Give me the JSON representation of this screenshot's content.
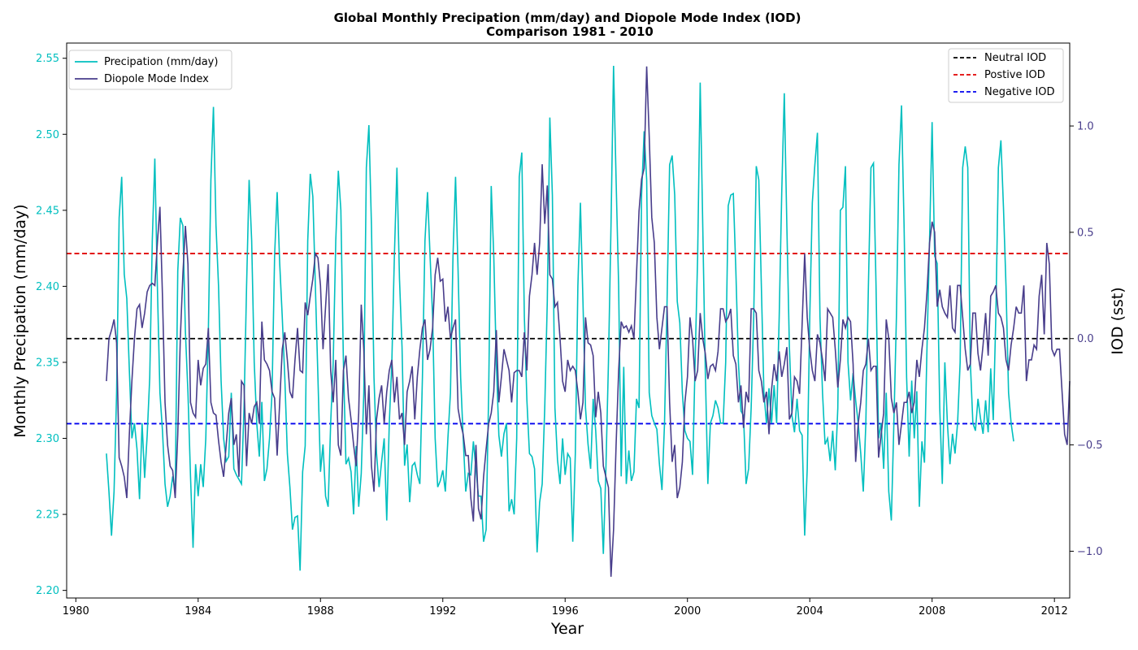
{
  "colors": {
    "precip": "#00bfbf",
    "iod": "#483d8b",
    "neutral": "#000000",
    "positive": "#e00000",
    "negative": "#0000ee",
    "left_tick_text": "#00bfbf",
    "right_tick_text": "#483d8b"
  },
  "chart_data": {
    "type": "line",
    "title": "Global Monthly Precipation (mm/day) and Diopole Mode Index (IOD)",
    "subtitle": "Comparison 1981 - 2010",
    "xlabel": "Year",
    "ylabel_left": "Monthly Precipation (mm/day)",
    "ylabel_right": "IOD (sst)",
    "xlim": [
      1979.7,
      2012.5
    ],
    "ylim_left": [
      2.195,
      2.56
    ],
    "ylim_right": [
      -1.22,
      1.39
    ],
    "x_ticks": [
      1980,
      1984,
      1988,
      1992,
      1996,
      2000,
      2004,
      2008,
      2012
    ],
    "x_tick_labels": [
      "1980",
      "1984",
      "1988",
      "1992",
      "1996",
      "2000",
      "2004",
      "2008",
      "2012"
    ],
    "left_ticks": [
      2.2,
      2.25,
      2.3,
      2.35,
      2.4,
      2.45,
      2.5,
      2.55
    ],
    "left_tick_labels": [
      "2.20",
      "2.25",
      "2.30",
      "2.35",
      "2.40",
      "2.45",
      "2.50",
      "2.55"
    ],
    "right_ticks": [
      -1.0,
      -0.5,
      0.0,
      0.5,
      1.0
    ],
    "right_tick_labels": [
      "−1.0",
      "−0.5",
      "0.0",
      "0.5",
      "1.0"
    ],
    "x_start": 1981.0,
    "x_step": 0.0833333,
    "grid": false,
    "legend_left_position": "upper-left",
    "legend_right_position": "upper-right",
    "series": [
      {
        "name": "Precipation (mm/day)",
        "axis": "left",
        "values": [
          2.29,
          2.265,
          2.236,
          2.265,
          2.33,
          2.445,
          2.472,
          2.408,
          2.392,
          2.345,
          2.3,
          2.31,
          2.293,
          2.26,
          2.31,
          2.274,
          2.302,
          2.34,
          2.43,
          2.484,
          2.4,
          2.33,
          2.305,
          2.27,
          2.255,
          2.262,
          2.275,
          2.265,
          2.41,
          2.445,
          2.44,
          2.37,
          2.33,
          2.275,
          2.228,
          2.283,
          2.262,
          2.283,
          2.268,
          2.3,
          2.37,
          2.47,
          2.518,
          2.44,
          2.4,
          2.338,
          2.3,
          2.285,
          2.288,
          2.33,
          2.28,
          2.276,
          2.273,
          2.27,
          2.32,
          2.4,
          2.47,
          2.43,
          2.35,
          2.31,
          2.288,
          2.324,
          2.272,
          2.28,
          2.3,
          2.33,
          2.42,
          2.462,
          2.415,
          2.38,
          2.34,
          2.29,
          2.268,
          2.24,
          2.248,
          2.249,
          2.213,
          2.278,
          2.295,
          2.43,
          2.474,
          2.459,
          2.4,
          2.34,
          2.278,
          2.296,
          2.262,
          2.255,
          2.31,
          2.35,
          2.43,
          2.476,
          2.45,
          2.35,
          2.283,
          2.287,
          2.278,
          2.25,
          2.295,
          2.255,
          2.277,
          2.33,
          2.478,
          2.506,
          2.44,
          2.34,
          2.29,
          2.268,
          2.285,
          2.3,
          2.246,
          2.31,
          2.35,
          2.42,
          2.478,
          2.405,
          2.36,
          2.282,
          2.296,
          2.258,
          2.282,
          2.284,
          2.276,
          2.27,
          2.34,
          2.43,
          2.462,
          2.42,
          2.38,
          2.3,
          2.268,
          2.272,
          2.279,
          2.265,
          2.3,
          2.33,
          2.42,
          2.472,
          2.41,
          2.34,
          2.3,
          2.265,
          2.277,
          2.276,
          2.298,
          2.28,
          2.262,
          2.262,
          2.232,
          2.24,
          2.33,
          2.466,
          2.42,
          2.35,
          2.302,
          2.288,
          2.303,
          2.31,
          2.252,
          2.26,
          2.25,
          2.3,
          2.472,
          2.488,
          2.38,
          2.325,
          2.29,
          2.288,
          2.28,
          2.225,
          2.258,
          2.27,
          2.32,
          2.39,
          2.511,
          2.46,
          2.32,
          2.286,
          2.27,
          2.3,
          2.276,
          2.29,
          2.287,
          2.232,
          2.29,
          2.4,
          2.455,
          2.39,
          2.32,
          2.296,
          2.28,
          2.326,
          2.305,
          2.272,
          2.267,
          2.224,
          2.28,
          2.35,
          2.44,
          2.545,
          2.47,
          2.4,
          2.275,
          2.347,
          2.27,
          2.292,
          2.272,
          2.278,
          2.326,
          2.32,
          2.46,
          2.502,
          2.47,
          2.33,
          2.315,
          2.31,
          2.306,
          2.283,
          2.266,
          2.31,
          2.39,
          2.48,
          2.486,
          2.46,
          2.39,
          2.376,
          2.33,
          2.305,
          2.3,
          2.298,
          2.276,
          2.35,
          2.42,
          2.534,
          2.44,
          2.345,
          2.27,
          2.31,
          2.315,
          2.325,
          2.32,
          2.31,
          2.31,
          2.35,
          2.453,
          2.46,
          2.461,
          2.41,
          2.35,
          2.318,
          2.315,
          2.27,
          2.28,
          2.32,
          2.38,
          2.479,
          2.47,
          2.4,
          2.33,
          2.31,
          2.333,
          2.31,
          2.335,
          2.31,
          2.38,
          2.462,
          2.527,
          2.44,
          2.36,
          2.315,
          2.304,
          2.326,
          2.305,
          2.302,
          2.236,
          2.28,
          2.38,
          2.455,
          2.48,
          2.501,
          2.38,
          2.33,
          2.296,
          2.3,
          2.285,
          2.305,
          2.279,
          2.32,
          2.45,
          2.452,
          2.479,
          2.35,
          2.325,
          2.343,
          2.325,
          2.31,
          2.29,
          2.265,
          2.31,
          2.4,
          2.478,
          2.481,
          2.4,
          2.3,
          2.31,
          2.28,
          2.33,
          2.265,
          2.246,
          2.31,
          2.38,
          2.48,
          2.519,
          2.44,
          2.34,
          2.288,
          2.338,
          2.3,
          2.331,
          2.255,
          2.298,
          2.284,
          2.36,
          2.43,
          2.508,
          2.42,
          2.415,
          2.32,
          2.27,
          2.35,
          2.31,
          2.283,
          2.303,
          2.29,
          2.31,
          2.35,
          2.478,
          2.492,
          2.478,
          2.35,
          2.31,
          2.305,
          2.326,
          2.313,
          2.303,
          2.325,
          2.304,
          2.346,
          2.312,
          2.38,
          2.478,
          2.496,
          2.452,
          2.4,
          2.33,
          2.31,
          2.298
        ]
      },
      {
        "name": "Diopole Mode Index",
        "axis": "right",
        "values": [
          -0.2,
          0.0,
          0.04,
          0.09,
          -0.02,
          -0.56,
          -0.6,
          -0.65,
          -0.75,
          -0.45,
          -0.2,
          0.0,
          0.14,
          0.16,
          0.05,
          0.12,
          0.22,
          0.25,
          0.26,
          0.25,
          0.45,
          0.62,
          0.2,
          -0.3,
          -0.5,
          -0.6,
          -0.62,
          -0.75,
          -0.45,
          0.0,
          0.3,
          0.53,
          0.35,
          -0.3,
          -0.35,
          -0.37,
          -0.1,
          -0.22,
          -0.14,
          -0.12,
          0.05,
          -0.3,
          -0.35,
          -0.36,
          -0.48,
          -0.58,
          -0.65,
          -0.5,
          -0.35,
          -0.28,
          -0.5,
          -0.45,
          -0.65,
          -0.2,
          -0.22,
          -0.6,
          -0.35,
          -0.4,
          -0.32,
          -0.3,
          -0.4,
          0.08,
          -0.1,
          -0.12,
          -0.15,
          -0.25,
          -0.28,
          -0.55,
          -0.3,
          -0.05,
          0.03,
          -0.1,
          -0.25,
          -0.28,
          -0.1,
          0.05,
          -0.15,
          -0.16,
          0.17,
          0.11,
          0.2,
          0.28,
          0.4,
          0.38,
          0.25,
          -0.05,
          0.15,
          0.35,
          -0.15,
          -0.3,
          -0.1,
          -0.5,
          -0.55,
          -0.15,
          -0.08,
          -0.28,
          -0.38,
          -0.5,
          -0.6,
          -0.35,
          0.16,
          -0.05,
          -0.45,
          -0.22,
          -0.6,
          -0.72,
          -0.38,
          -0.28,
          -0.22,
          -0.4,
          -0.25,
          -0.15,
          -0.1,
          -0.3,
          -0.18,
          -0.38,
          -0.35,
          -0.5,
          -0.25,
          -0.2,
          -0.13,
          -0.38,
          -0.18,
          -0.05,
          0.05,
          0.09,
          -0.1,
          -0.05,
          0.05,
          0.3,
          0.38,
          0.27,
          0.28,
          0.08,
          0.15,
          0.0,
          0.05,
          0.09,
          -0.33,
          -0.4,
          -0.45,
          -0.55,
          -0.55,
          -0.75,
          -0.86,
          -0.5,
          -0.8,
          -0.85,
          -0.65,
          -0.52,
          -0.4,
          -0.35,
          -0.25,
          0.04,
          -0.3,
          -0.18,
          -0.05,
          -0.1,
          -0.15,
          -0.3,
          -0.16,
          -0.15,
          -0.15,
          -0.18,
          0.03,
          -0.15,
          0.2,
          0.3,
          0.45,
          0.3,
          0.45,
          0.82,
          0.54,
          0.72,
          0.3,
          0.28,
          0.15,
          0.17,
          0.0,
          -0.2,
          -0.25,
          -0.1,
          -0.15,
          -0.13,
          -0.15,
          -0.25,
          -0.38,
          -0.3,
          0.1,
          -0.02,
          -0.03,
          -0.08,
          -0.37,
          -0.25,
          -0.35,
          -0.6,
          -0.65,
          -0.7,
          -1.12,
          -0.9,
          -0.5,
          -0.15,
          0.08,
          0.05,
          0.06,
          0.03,
          0.06,
          0.0,
          0.3,
          0.6,
          0.75,
          0.8,
          1.28,
          0.95,
          0.57,
          0.45,
          0.1,
          -0.05,
          0.05,
          0.15,
          0.15,
          -0.3,
          -0.58,
          -0.5,
          -0.75,
          -0.7,
          -0.58,
          -0.3,
          -0.18,
          0.1,
          0.0,
          -0.2,
          -0.15,
          0.12,
          0.0,
          -0.07,
          -0.19,
          -0.13,
          -0.12,
          -0.15,
          -0.06,
          0.14,
          0.14,
          0.08,
          0.1,
          0.14,
          -0.08,
          -0.12,
          -0.3,
          -0.22,
          -0.42,
          -0.25,
          -0.3,
          0.14,
          0.14,
          0.12,
          -0.15,
          -0.2,
          -0.3,
          -0.25,
          -0.45,
          -0.24,
          -0.12,
          -0.2,
          -0.06,
          -0.18,
          -0.12,
          -0.04,
          -0.38,
          -0.35,
          -0.18,
          -0.2,
          -0.26,
          0.07,
          0.4,
          0.1,
          -0.05,
          -0.15,
          -0.2,
          0.02,
          -0.02,
          -0.1,
          -0.2,
          0.14,
          0.12,
          0.1,
          -0.05,
          -0.23,
          -0.1,
          0.09,
          0.05,
          0.1,
          0.08,
          -0.12,
          -0.58,
          -0.4,
          -0.3,
          -0.15,
          -0.12,
          0.0,
          -0.15,
          -0.13,
          -0.13,
          -0.56,
          -0.45,
          -0.35,
          0.09,
          0.0,
          -0.28,
          -0.35,
          -0.3,
          -0.5,
          -0.4,
          -0.3,
          -0.3,
          -0.25,
          -0.35,
          -0.3,
          -0.1,
          -0.18,
          -0.05,
          0.05,
          0.22,
          0.45,
          0.55,
          0.5,
          0.15,
          0.23,
          0.15,
          0.12,
          0.1,
          0.25,
          0.05,
          0.03,
          0.25,
          0.25,
          0.1,
          -0.05,
          -0.15,
          -0.12,
          0.12,
          0.12,
          -0.07,
          -0.15,
          -0.03,
          0.12,
          -0.08,
          0.2,
          0.22,
          0.25,
          0.12,
          0.1,
          0.05,
          -0.1,
          -0.15,
          -0.03,
          0.05,
          0.15,
          0.12,
          0.12,
          0.25,
          -0.2,
          -0.1,
          -0.1,
          -0.03,
          -0.05,
          0.2,
          0.3,
          0.02,
          0.45,
          0.35,
          -0.05,
          -0.08,
          -0.05,
          -0.05,
          -0.25,
          -0.45,
          -0.5,
          -0.2
        ]
      }
    ],
    "reference_lines": [
      {
        "name": "Neutral IOD",
        "value": 0.0,
        "axis": "right",
        "style": "dashed",
        "color_key": "neutral"
      },
      {
        "name": "Postive IOD",
        "value": 0.4,
        "axis": "right",
        "style": "dashed",
        "color_key": "positive"
      },
      {
        "name": "Negative IOD",
        "value": -0.4,
        "axis": "right",
        "style": "dashed",
        "color_key": "negative"
      }
    ]
  }
}
